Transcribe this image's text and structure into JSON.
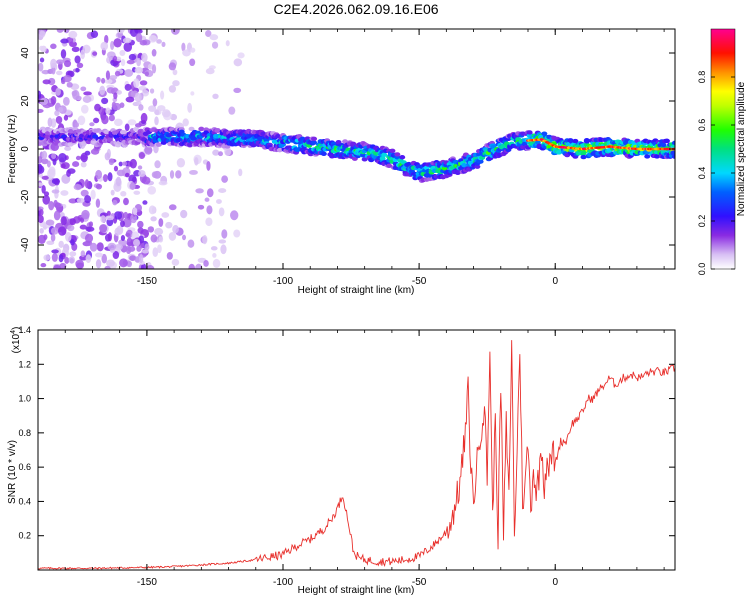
{
  "figure": {
    "title": "C2E4.2026.062.09.16.E06"
  },
  "chart_data": [
    {
      "type": "heatmap",
      "xlabel": "Height of straight line (km)",
      "ylabel": "Frequency (Hz)",
      "xlim": [
        -190,
        44
      ],
      "ylim": [
        -50,
        50
      ],
      "xticks": [
        -150,
        -100,
        -50,
        0
      ],
      "yticks": [
        -40,
        -20,
        0,
        20,
        40
      ],
      "colorbar": {
        "label": "Normalized spectral amplitude",
        "range": [
          0,
          1
        ],
        "ticks": [
          "0.0",
          "0.2",
          "0.4",
          "0.6",
          "0.8"
        ],
        "colormap": [
          "#ffffff",
          "#c8a8f0",
          "#8a2be2",
          "#2020ff",
          "#00d8ff",
          "#00ff40",
          "#ffff00",
          "#ff8000",
          "#ff0000",
          "#ff00a0"
        ]
      },
      "ridge": {
        "description_points_x": [
          -155,
          -130,
          -110,
          -95,
          -80,
          -70,
          -60,
          -50,
          -40,
          -30,
          -22,
          -15,
          -5,
          0,
          10,
          20,
          30,
          44
        ],
        "description_points_y": [
          5,
          5,
          4,
          2,
          0,
          -1,
          -4,
          -10,
          -8,
          -5,
          0,
          3,
          4,
          1,
          0,
          1,
          0,
          0
        ]
      },
      "grid": false
    },
    {
      "type": "line",
      "xlabel": "Height of straight line (km)",
      "ylabel": "SNR (10 * v/v)",
      "yscale_label": "(x10",
      "yscale_exp": "4",
      "yscale_close": ")",
      "xlim": [
        -190,
        44
      ],
      "ylim": [
        0,
        1.4
      ],
      "xticks": [
        -150,
        -100,
        -50,
        0
      ],
      "yticks": [
        "0.2",
        "0.4",
        "0.6",
        "0.8",
        "1.0",
        "1.2",
        "1.4"
      ],
      "series": [
        {
          "color": "#e8302c",
          "x": [
            -190,
            -170,
            -150,
            -140,
            -130,
            -120,
            -110,
            -100,
            -95,
            -90,
            -85,
            -82,
            -80,
            -78,
            -76,
            -74,
            -72,
            -70,
            -65,
            -60,
            -55,
            -50,
            -45,
            -40,
            -38,
            -35,
            -33,
            -32,
            -31,
            -30,
            -28,
            -26,
            -25,
            -24,
            -23,
            -22,
            -21,
            -20,
            -19,
            -18,
            -17,
            -16,
            -15,
            -14,
            -13,
            -12,
            -11,
            -10,
            -9,
            -8,
            -7,
            -6,
            -5,
            -4,
            -3,
            -2,
            -1,
            0,
            2,
            4,
            6,
            8,
            10,
            12,
            14,
            16,
            18,
            20,
            22,
            25,
            28,
            31,
            34,
            37,
            40,
            44
          ],
          "y": [
            0.01,
            0.01,
            0.015,
            0.02,
            0.03,
            0.04,
            0.06,
            0.09,
            0.14,
            0.18,
            0.24,
            0.3,
            0.36,
            0.44,
            0.28,
            0.1,
            0.07,
            0.06,
            0.05,
            0.05,
            0.06,
            0.08,
            0.14,
            0.22,
            0.3,
            0.5,
            0.8,
            1.05,
            0.6,
            0.4,
            0.75,
            0.95,
            0.55,
            1.3,
            0.3,
            0.9,
            0.2,
            1.1,
            0.2,
            0.85,
            0.4,
            1.35,
            0.2,
            0.7,
            1.3,
            0.4,
            0.5,
            0.75,
            0.35,
            0.6,
            0.45,
            0.55,
            0.72,
            0.5,
            0.65,
            0.6,
            0.7,
            0.62,
            0.75,
            0.75,
            0.85,
            0.88,
            0.92,
            1.0,
            1.0,
            1.05,
            1.08,
            1.12,
            1.08,
            1.12,
            1.14,
            1.12,
            1.15,
            1.16,
            1.15,
            1.18
          ]
        }
      ],
      "grid": false
    }
  ]
}
